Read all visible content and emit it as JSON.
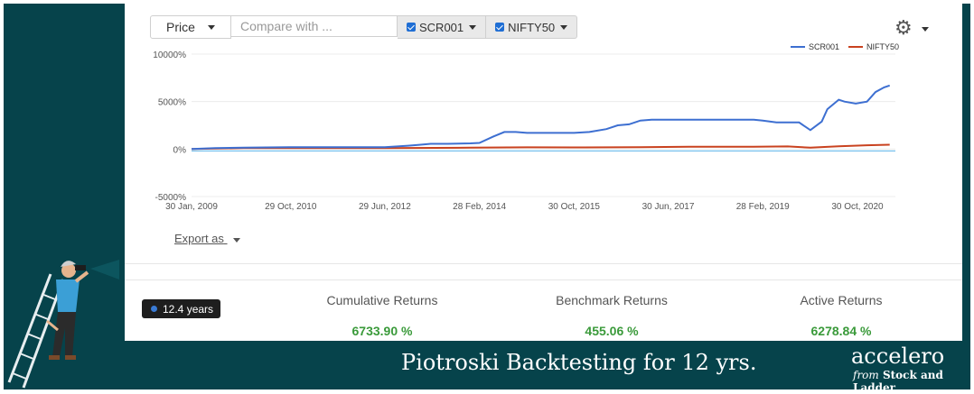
{
  "toolbar": {
    "price_label": "Price",
    "compare_placeholder": "Compare with ...",
    "ticker1": "SCR001",
    "ticker2": "NIFTY50",
    "settings_icon": "gear-icon"
  },
  "export_label": "Export as",
  "chart_data": {
    "type": "line",
    "y_ticks": [
      "10000%",
      "5000%",
      "0%",
      "-5000%"
    ],
    "y_tick_values": [
      10000,
      5000,
      0,
      -5000
    ],
    "ylim": [
      -5000,
      10000
    ],
    "x_tick_labels": [
      "30 Jan, 2009",
      "29 Oct, 2010",
      "29 Jun, 2012",
      "28 Feb, 2014",
      "30 Oct, 2015",
      "30 Jun, 2017",
      "28 Feb, 2019",
      "30 Oct, 2020"
    ],
    "x_tick_values": [
      2009.08,
      2010.83,
      2012.49,
      2014.16,
      2015.83,
      2017.49,
      2019.16,
      2020.83
    ],
    "xlim": [
      2009.08,
      2021.5
    ],
    "legend": "top-right",
    "grid": true,
    "series": [
      {
        "name": "SCR001",
        "color": "#3d6fd1",
        "x": [
          2009.08,
          2009.5,
          2010.0,
          2010.8,
          2011.5,
          2012.0,
          2012.49,
          2012.9,
          2013.1,
          2013.3,
          2013.6,
          2014.0,
          2014.16,
          2014.4,
          2014.6,
          2014.8,
          2015.0,
          2015.3,
          2015.6,
          2015.83,
          2016.1,
          2016.4,
          2016.6,
          2016.8,
          2017.0,
          2017.2,
          2017.5,
          2018.0,
          2018.5,
          2019.0,
          2019.16,
          2019.4,
          2019.8,
          2020.0,
          2020.2,
          2020.3,
          2020.5,
          2020.6,
          2020.8,
          2021.0,
          2021.15,
          2021.3,
          2021.4
        ],
        "values": [
          0,
          100,
          150,
          200,
          200,
          200,
          200,
          350,
          450,
          550,
          550,
          600,
          650,
          1300,
          1800,
          1800,
          1700,
          1700,
          1700,
          1700,
          1800,
          2100,
          2500,
          2600,
          3000,
          3100,
          3100,
          3100,
          3100,
          3100,
          3000,
          2800,
          2800,
          2000,
          2900,
          4200,
          5200,
          5000,
          4800,
          5000,
          6000,
          6500,
          6700
        ]
      },
      {
        "name": "NIFTY50",
        "color": "#c9421f",
        "x": [
          2009.08,
          2010.0,
          2011.0,
          2012.49,
          2014.0,
          2015.0,
          2016.0,
          2017.0,
          2018.0,
          2019.0,
          2019.6,
          2020.0,
          2020.5,
          2021.0,
          2021.4
        ],
        "values": [
          0,
          100,
          100,
          100,
          150,
          180,
          170,
          200,
          250,
          250,
          280,
          150,
          300,
          400,
          455
        ]
      }
    ]
  },
  "period": "12.4 years",
  "stats": [
    {
      "label": "Cumulative Returns",
      "value": "6733.90 %"
    },
    {
      "label": "Benchmark Returns",
      "value": "455.06 %"
    },
    {
      "label": "Active Returns",
      "value": "6278.84 %"
    }
  ],
  "banner": {
    "title": "Piotroski Backtesting  for 12 yrs.",
    "brand": "accelero",
    "brand_from": "from",
    "brand_sub": "Stock and Ladder",
    "illustration_icon": "man-on-ladder-with-binoculars-icon"
  }
}
